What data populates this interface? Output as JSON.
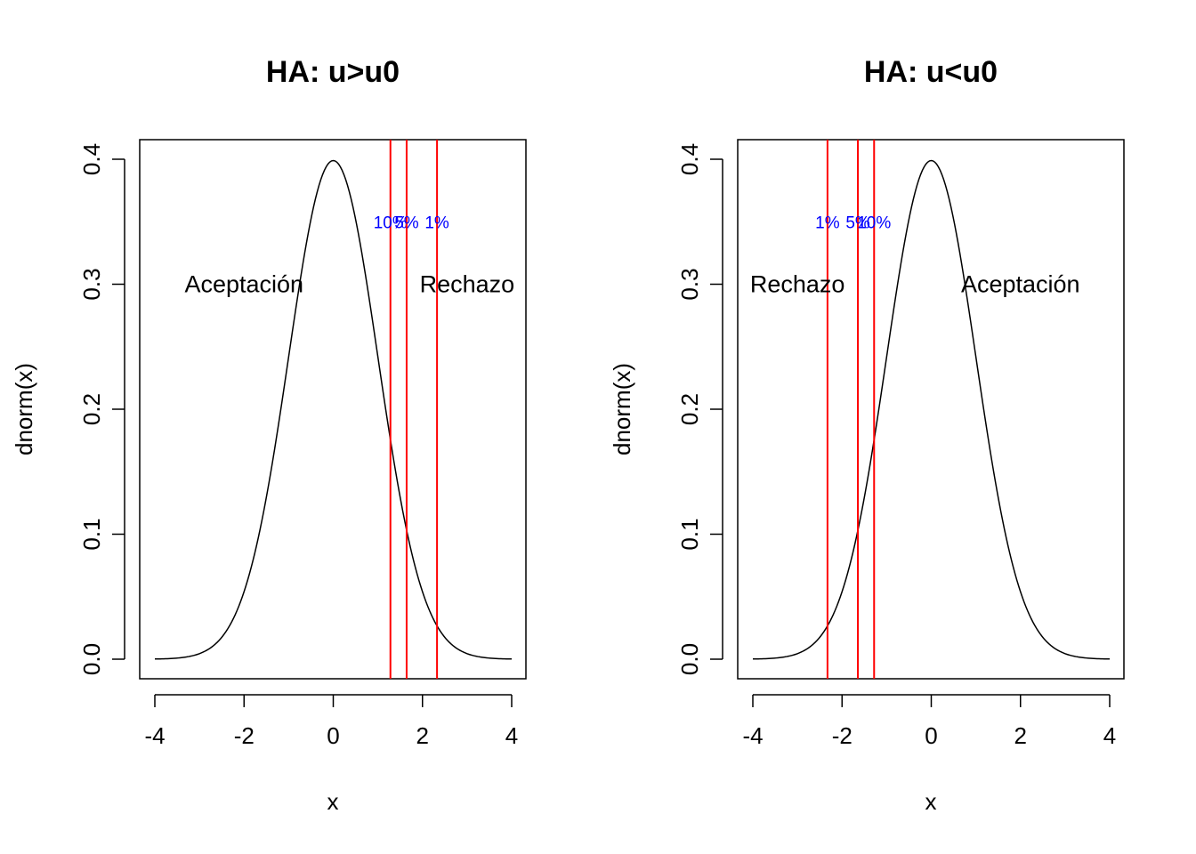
{
  "chart_data": [
    {
      "type": "line",
      "title": "HA: u>u0",
      "xlabel": "x",
      "ylabel": "dnorm(x)",
      "xlim": [
        -4,
        4
      ],
      "ylim": [
        0,
        0.4
      ],
      "xticks": [
        -4,
        -2,
        0,
        2,
        4
      ],
      "xtick_labels": [
        "-4",
        "-2",
        "0",
        "2",
        "4"
      ],
      "yticks": [
        0.0,
        0.1,
        0.2,
        0.3,
        0.4
      ],
      "ytick_labels": [
        "0.0",
        "0.1",
        "0.2",
        "0.3",
        "0.4"
      ],
      "series": [
        {
          "function": "dnorm",
          "x_range": [
            -4,
            4
          ],
          "color": "#000000"
        }
      ],
      "vlines": [
        {
          "x": 1.2816,
          "label": "10%"
        },
        {
          "x": 1.6449,
          "label": "5%"
        },
        {
          "x": 2.3263,
          "label": "1%"
        }
      ],
      "vline_color": "#ff0000",
      "vline_label_y": 0.35,
      "vline_label_color": "#0000ff",
      "annotations": [
        {
          "text": "Aceptación",
          "x": -2.0,
          "y": 0.3
        },
        {
          "text": "Rechazo",
          "x": 3.0,
          "y": 0.3
        }
      ],
      "grid": false,
      "legend": "none"
    },
    {
      "type": "line",
      "title": "HA: u<u0",
      "xlabel": "x",
      "ylabel": "dnorm(x)",
      "xlim": [
        -4,
        4
      ],
      "ylim": [
        0,
        0.4
      ],
      "xticks": [
        -4,
        -2,
        0,
        2,
        4
      ],
      "xtick_labels": [
        "-4",
        "-2",
        "0",
        "2",
        "4"
      ],
      "yticks": [
        0.0,
        0.1,
        0.2,
        0.3,
        0.4
      ],
      "ytick_labels": [
        "0.0",
        "0.1",
        "0.2",
        "0.3",
        "0.4"
      ],
      "series": [
        {
          "function": "dnorm",
          "x_range": [
            -4,
            4
          ],
          "color": "#000000"
        }
      ],
      "vlines": [
        {
          "x": -2.3263,
          "label": "1%"
        },
        {
          "x": -1.6449,
          "label": "5%"
        },
        {
          "x": -1.2816,
          "label": "10%"
        }
      ],
      "vline_color": "#ff0000",
      "vline_label_y": 0.35,
      "vline_label_color": "#0000ff",
      "annotations": [
        {
          "text": "Rechazo",
          "x": -3.0,
          "y": 0.3
        },
        {
          "text": "Aceptación",
          "x": 2.0,
          "y": 0.3
        }
      ],
      "grid": false,
      "legend": "none"
    }
  ]
}
